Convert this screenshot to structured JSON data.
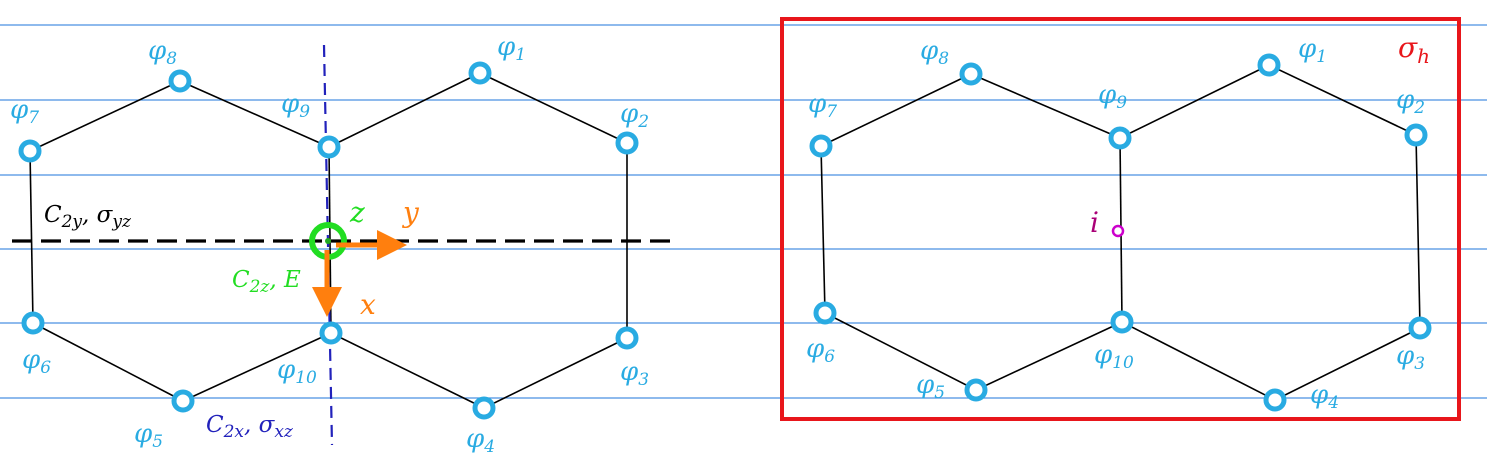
{
  "colors": {
    "atom": "#29abe2",
    "bond": "#000000",
    "gridline": "#4a90e2",
    "axis_arrow": "#ff7f0e",
    "z_origin": "#22dd22",
    "c2x_axis": "#2222bb",
    "sigma_h_box": "#e8161b",
    "inversion": "#cc00cc"
  },
  "left": {
    "atoms": [
      {
        "id": "phi1",
        "base": "φ",
        "sub": "1"
      },
      {
        "id": "phi2",
        "base": "φ",
        "sub": "2"
      },
      {
        "id": "phi3",
        "base": "φ",
        "sub": "3"
      },
      {
        "id": "phi4",
        "base": "φ",
        "sub": "4"
      },
      {
        "id": "phi5",
        "base": "φ",
        "sub": "5"
      },
      {
        "id": "phi6",
        "base": "φ",
        "sub": "6"
      },
      {
        "id": "phi7",
        "base": "φ",
        "sub": "7"
      },
      {
        "id": "phi8",
        "base": "φ",
        "sub": "8"
      },
      {
        "id": "phi9",
        "base": "φ",
        "sub": "9"
      },
      {
        "id": "phi10",
        "base": "φ",
        "sub": "10"
      }
    ],
    "c2y_label": {
      "c": "C",
      "c_sub": "2y",
      "sep": ", ",
      "s": "σ",
      "s_sub": "yz"
    },
    "c2z_label": {
      "c": "C",
      "c_sub": "2z",
      "sep": ", ",
      "e": "E"
    },
    "c2x_label": {
      "c": "C",
      "c_sub": "2x",
      "sep": ", ",
      "s": "σ",
      "s_sub": "xz"
    },
    "axis_z": "z",
    "axis_y": "y",
    "axis_x": "x"
  },
  "right": {
    "atoms": [
      {
        "id": "phi1",
        "base": "φ",
        "sub": "1"
      },
      {
        "id": "phi2",
        "base": "φ",
        "sub": "2"
      },
      {
        "id": "phi3",
        "base": "φ",
        "sub": "3"
      },
      {
        "id": "phi4",
        "base": "φ",
        "sub": "4"
      },
      {
        "id": "phi5",
        "base": "φ",
        "sub": "5"
      },
      {
        "id": "phi6",
        "base": "φ",
        "sub": "6"
      },
      {
        "id": "phi7",
        "base": "φ",
        "sub": "7"
      },
      {
        "id": "phi8",
        "base": "φ",
        "sub": "8"
      },
      {
        "id": "phi9",
        "base": "φ",
        "sub": "9"
      },
      {
        "id": "phi10",
        "base": "φ",
        "sub": "10"
      }
    ],
    "sigma_h": {
      "s": "σ",
      "sub": "h"
    },
    "inversion_label": "i"
  }
}
